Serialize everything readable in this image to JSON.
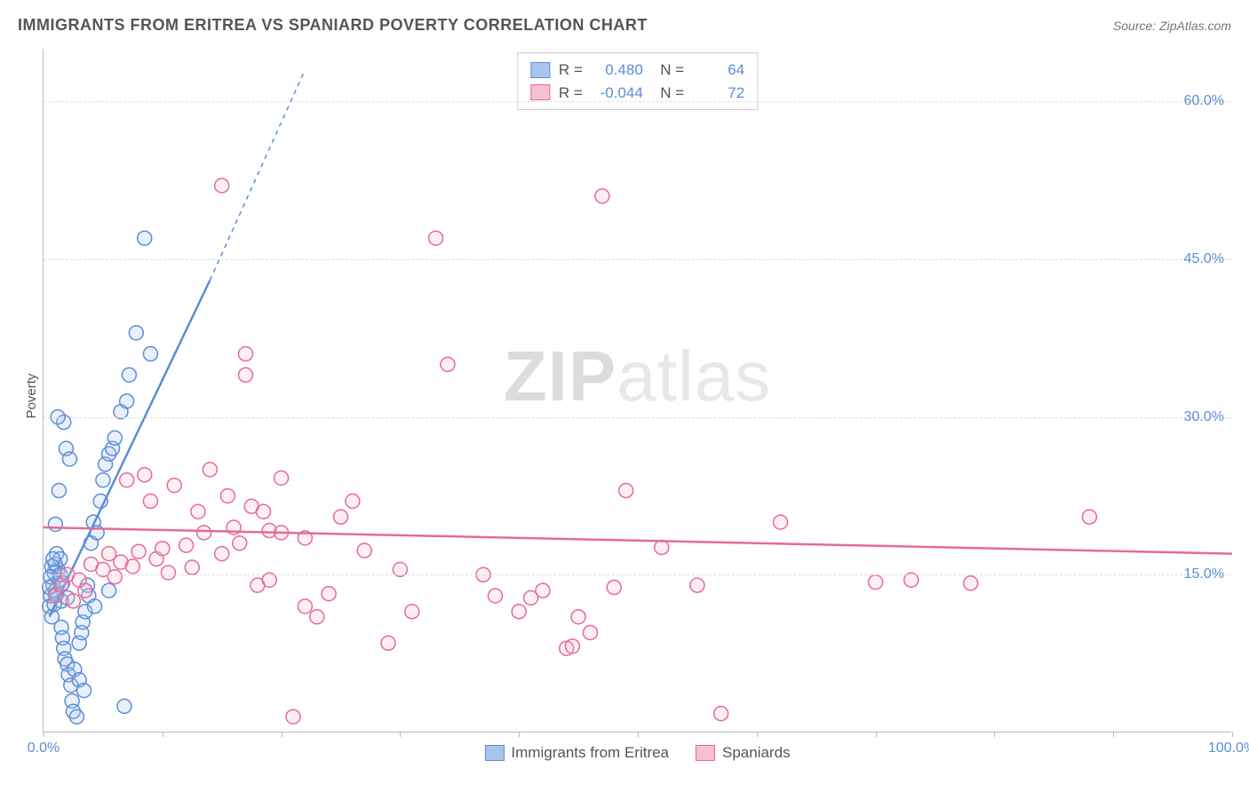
{
  "header": {
    "title": "IMMIGRANTS FROM ERITREA VS SPANIARD POVERTY CORRELATION CHART",
    "source_label": "Source: ZipAtlas.com"
  },
  "chart": {
    "type": "scatter",
    "ylabel": "Poverty",
    "watermark_a": "ZIP",
    "watermark_b": "atlas",
    "xlim": [
      0,
      100
    ],
    "ylim": [
      0,
      65
    ],
    "x_ticks": [
      0,
      10,
      20,
      30,
      40,
      50,
      60,
      70,
      80,
      90,
      100
    ],
    "x_tick_labels": {
      "0": "0.0%",
      "100": "100.0%"
    },
    "y_ticks": [
      15,
      30,
      45,
      60
    ],
    "y_tick_labels": {
      "15": "15.0%",
      "30": "30.0%",
      "45": "45.0%",
      "60": "60.0%"
    },
    "background_color": "#ffffff",
    "grid_color": "#dddddd",
    "axis_color": "#bbbbbb",
    "tick_label_color": "#5b8dd6",
    "marker_radius": 8,
    "marker_stroke_width": 1.5,
    "marker_fill_opacity": 0.25,
    "series": [
      {
        "key": "eritrea",
        "label": "Immigrants from Eritrea",
        "color_stroke": "#5b8dd6",
        "color_fill": "#a9c5eb",
        "r_value": "0.480",
        "n_value": "64",
        "trend": {
          "x1": 0.5,
          "y1": 11,
          "x2": 14,
          "y2": 43,
          "dash_x2": 22,
          "dash_y2": 63
        },
        "points": [
          [
            0.5,
            12
          ],
          [
            0.6,
            13
          ],
          [
            0.7,
            11
          ],
          [
            0.8,
            14
          ],
          [
            1.0,
            13.5
          ],
          [
            1.0,
            16
          ],
          [
            1.1,
            17
          ],
          [
            1.2,
            15.5
          ],
          [
            1.3,
            14.5
          ],
          [
            1.4,
            16.5
          ],
          [
            1.5,
            12.5
          ],
          [
            1.5,
            10
          ],
          [
            1.6,
            9
          ],
          [
            1.7,
            8
          ],
          [
            1.8,
            7
          ],
          [
            2.0,
            6.5
          ],
          [
            2.1,
            5.5
          ],
          [
            2.3,
            4.5
          ],
          [
            2.4,
            3
          ],
          [
            2.5,
            2
          ],
          [
            2.8,
            1.5
          ],
          [
            3.0,
            8.5
          ],
          [
            3.2,
            9.5
          ],
          [
            3.3,
            10.5
          ],
          [
            3.5,
            11.5
          ],
          [
            3.7,
            14
          ],
          [
            4.0,
            18
          ],
          [
            4.2,
            20
          ],
          [
            4.5,
            19
          ],
          [
            4.8,
            22
          ],
          [
            5.0,
            24
          ],
          [
            5.2,
            25.5
          ],
          [
            5.5,
            26.5
          ],
          [
            5.8,
            27
          ],
          [
            6.0,
            28
          ],
          [
            6.5,
            30.5
          ],
          [
            7.0,
            31.5
          ],
          [
            7.2,
            34
          ],
          [
            7.8,
            38
          ],
          [
            8.5,
            47
          ],
          [
            9.0,
            36
          ],
          [
            3.8,
            13
          ],
          [
            4.3,
            12
          ],
          [
            5.5,
            13.5
          ],
          [
            6.8,
            2.5
          ],
          [
            1.9,
            27
          ],
          [
            2.2,
            26
          ],
          [
            1.0,
            19.8
          ],
          [
            0.9,
            15.2
          ],
          [
            1.1,
            13.2
          ],
          [
            1.6,
            14.2
          ],
          [
            2.0,
            12.8
          ],
          [
            2.6,
            6
          ],
          [
            3.0,
            5
          ],
          [
            3.4,
            4
          ],
          [
            1.3,
            23
          ],
          [
            1.7,
            29.5
          ],
          [
            1.2,
            30
          ],
          [
            0.7,
            15.8
          ],
          [
            0.8,
            16.5
          ],
          [
            0.6,
            14.8
          ],
          [
            0.5,
            13.8
          ],
          [
            0.9,
            12.2
          ],
          [
            1.4,
            15
          ]
        ]
      },
      {
        "key": "spaniards",
        "label": "Spaniards",
        "color_stroke": "#e56b94",
        "color_fill": "#f6c0d1",
        "r_value": "-0.044",
        "n_value": "72",
        "trend": {
          "x1": 0,
          "y1": 19.5,
          "x2": 100,
          "y2": 17
        },
        "points": [
          [
            1,
            13
          ],
          [
            1.5,
            14
          ],
          [
            2,
            15
          ],
          [
            2.5,
            12.5
          ],
          [
            3,
            14.5
          ],
          [
            3.5,
            13.5
          ],
          [
            4,
            16
          ],
          [
            5,
            15.5
          ],
          [
            5.5,
            17
          ],
          [
            6,
            14.8
          ],
          [
            6.5,
            16.2
          ],
          [
            7,
            24
          ],
          [
            7.5,
            15.8
          ],
          [
            8,
            17.2
          ],
          [
            8.5,
            24.5
          ],
          [
            9,
            22
          ],
          [
            9.5,
            16.5
          ],
          [
            10,
            17.5
          ],
          [
            10.5,
            15.2
          ],
          [
            11,
            23.5
          ],
          [
            12,
            17.8
          ],
          [
            12.5,
            15.7
          ],
          [
            13,
            21
          ],
          [
            13.5,
            19
          ],
          [
            14,
            25
          ],
          [
            15,
            17
          ],
          [
            15.5,
            22.5
          ],
          [
            16,
            19.5
          ],
          [
            16.5,
            18
          ],
          [
            17,
            36
          ],
          [
            17.5,
            21.5
          ],
          [
            18,
            14
          ],
          [
            18.5,
            21
          ],
          [
            19,
            19.2
          ],
          [
            20,
            24.2
          ],
          [
            21,
            1.5
          ],
          [
            22,
            18.5
          ],
          [
            23,
            11
          ],
          [
            24,
            13.2
          ],
          [
            25,
            20.5
          ],
          [
            26,
            22
          ],
          [
            27,
            17.3
          ],
          [
            29,
            8.5
          ],
          [
            30,
            15.5
          ],
          [
            31,
            11.5
          ],
          [
            33,
            47
          ],
          [
            34,
            35
          ],
          [
            37,
            15
          ],
          [
            38,
            13
          ],
          [
            40,
            11.5
          ],
          [
            41,
            12.8
          ],
          [
            42,
            13.5
          ],
          [
            44,
            8
          ],
          [
            44.5,
            8.2
          ],
          [
            45,
            11
          ],
          [
            46,
            9.5
          ],
          [
            47,
            51
          ],
          [
            48,
            13.8
          ],
          [
            49,
            23
          ],
          [
            52,
            17.6
          ],
          [
            55,
            14
          ],
          [
            57,
            1.8
          ],
          [
            62,
            20
          ],
          [
            70,
            14.3
          ],
          [
            73,
            14.5
          ],
          [
            78,
            14.2
          ],
          [
            88,
            20.5
          ],
          [
            15,
            52
          ],
          [
            17,
            34
          ],
          [
            19,
            14.5
          ],
          [
            20,
            19
          ],
          [
            22,
            12
          ]
        ]
      }
    ],
    "legend_top": {
      "r_label": "R =",
      "n_label": "N ="
    }
  }
}
